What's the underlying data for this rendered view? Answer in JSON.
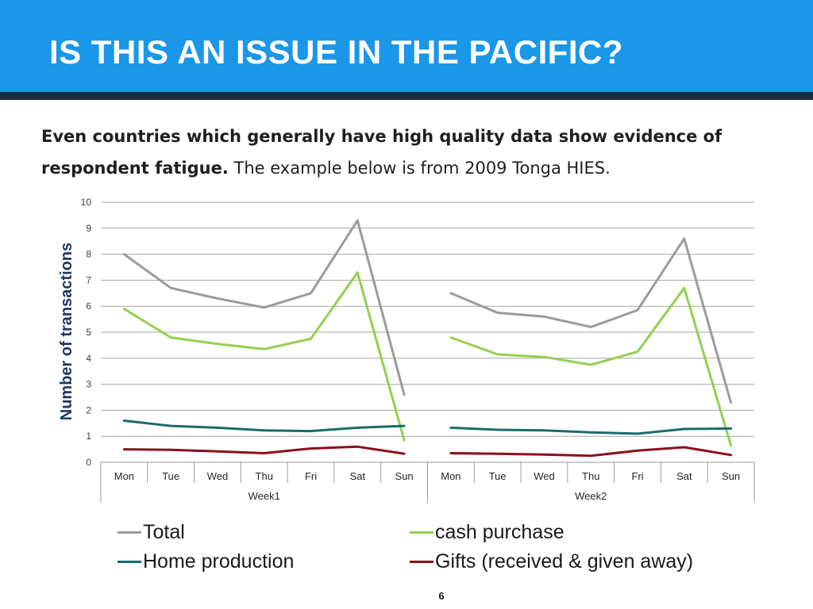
{
  "slide": {
    "title": "IS THIS AN ISSUE IN THE PACIFIC?",
    "intro_bold": "Even countries which generally have high quality data show evidence of respondent fatigue.",
    "intro_rest": " The example below is from 2009 Tonga HIES.",
    "page_number": "6"
  },
  "colors": {
    "header_bg": "#1a97e8",
    "header_bar": "#1c2a3d",
    "title_text": "#ffffff"
  },
  "chart_data": {
    "type": "line",
    "ylabel": "Number of transactions",
    "ylim": [
      0,
      10
    ],
    "yticks": [
      0,
      1,
      2,
      3,
      4,
      5,
      6,
      7,
      8,
      9,
      10
    ],
    "grid": true,
    "legend_position": "bottom",
    "groups": [
      {
        "name": "Week1",
        "categories": [
          "Mon",
          "Tue",
          "Wed",
          "Thu",
          "Fri",
          "Sat",
          "Sun"
        ]
      },
      {
        "name": "Week2",
        "categories": [
          "Mon",
          "Tue",
          "Wed",
          "Thu",
          "Fri",
          "Sat",
          "Sun"
        ]
      }
    ],
    "series": [
      {
        "name": "Total",
        "color": "#9b9b9b",
        "week1": [
          8.0,
          6.7,
          6.3,
          5.95,
          6.5,
          9.3,
          2.6
        ],
        "week2": [
          6.5,
          5.75,
          5.6,
          5.2,
          5.85,
          8.6,
          2.3
        ]
      },
      {
        "name": "cash purchase",
        "color": "#92d050",
        "week1": [
          5.9,
          4.8,
          4.55,
          4.35,
          4.75,
          7.3,
          0.85
        ],
        "week2": [
          4.8,
          4.15,
          4.05,
          3.75,
          4.25,
          6.7,
          0.65
        ]
      },
      {
        "name": "Home production",
        "color": "#1b6b6b",
        "week1": [
          1.6,
          1.4,
          1.33,
          1.23,
          1.2,
          1.33,
          1.4
        ],
        "week2": [
          1.33,
          1.25,
          1.23,
          1.15,
          1.1,
          1.28,
          1.3
        ]
      },
      {
        "name": "Gifts (received & given away)",
        "color": "#8b0f1a",
        "week1": [
          0.5,
          0.48,
          0.42,
          0.35,
          0.53,
          0.6,
          0.33
        ],
        "week2": [
          0.35,
          0.33,
          0.3,
          0.25,
          0.45,
          0.58,
          0.28
        ]
      }
    ]
  }
}
